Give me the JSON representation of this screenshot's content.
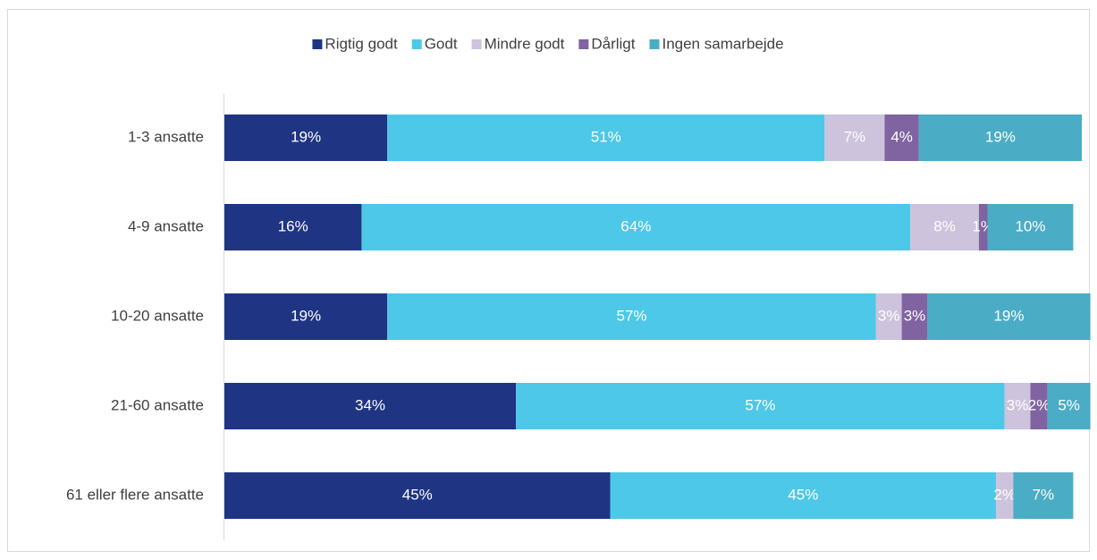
{
  "chart_data": {
    "type": "stacked-bar-horizontal",
    "categories": [
      "1-3 ansatte",
      "4-9 ansatte",
      "10-20 ansatte",
      "21-60 ansatte",
      "61 eller flere ansatte"
    ],
    "xlim": [
      0,
      100
    ],
    "series": [
      {
        "name": "Rigtig godt",
        "color": "#1f3584",
        "values": [
          19,
          16,
          19,
          34,
          45
        ],
        "value_labels": [
          "19%",
          "16%",
          "19%",
          "34%",
          "45%"
        ]
      },
      {
        "name": "Godt",
        "color": "#4dc8e8",
        "values": [
          51,
          64,
          57,
          57,
          45
        ],
        "value_labels": [
          "51%",
          "64%",
          "57%",
          "57%",
          "45%"
        ]
      },
      {
        "name": "Mindre godt",
        "color": "#cdc3dc",
        "values": [
          7,
          8,
          3,
          3,
          2
        ],
        "value_labels": [
          "7%",
          "8%",
          "3%",
          "3%",
          "2%"
        ]
      },
      {
        "name": "Dårligt",
        "color": "#8064a2",
        "values": [
          4,
          1,
          3,
          2,
          0
        ],
        "value_labels": [
          "4%",
          "1%",
          "3%",
          "2%",
          null
        ]
      },
      {
        "name": "Ingen samarbejde",
        "color": "#4bacc6",
        "values": [
          19,
          10,
          19,
          5,
          7
        ],
        "value_labels": [
          "19%",
          "10%",
          "19%",
          "5%",
          "7%"
        ]
      }
    ],
    "legend": "top"
  }
}
